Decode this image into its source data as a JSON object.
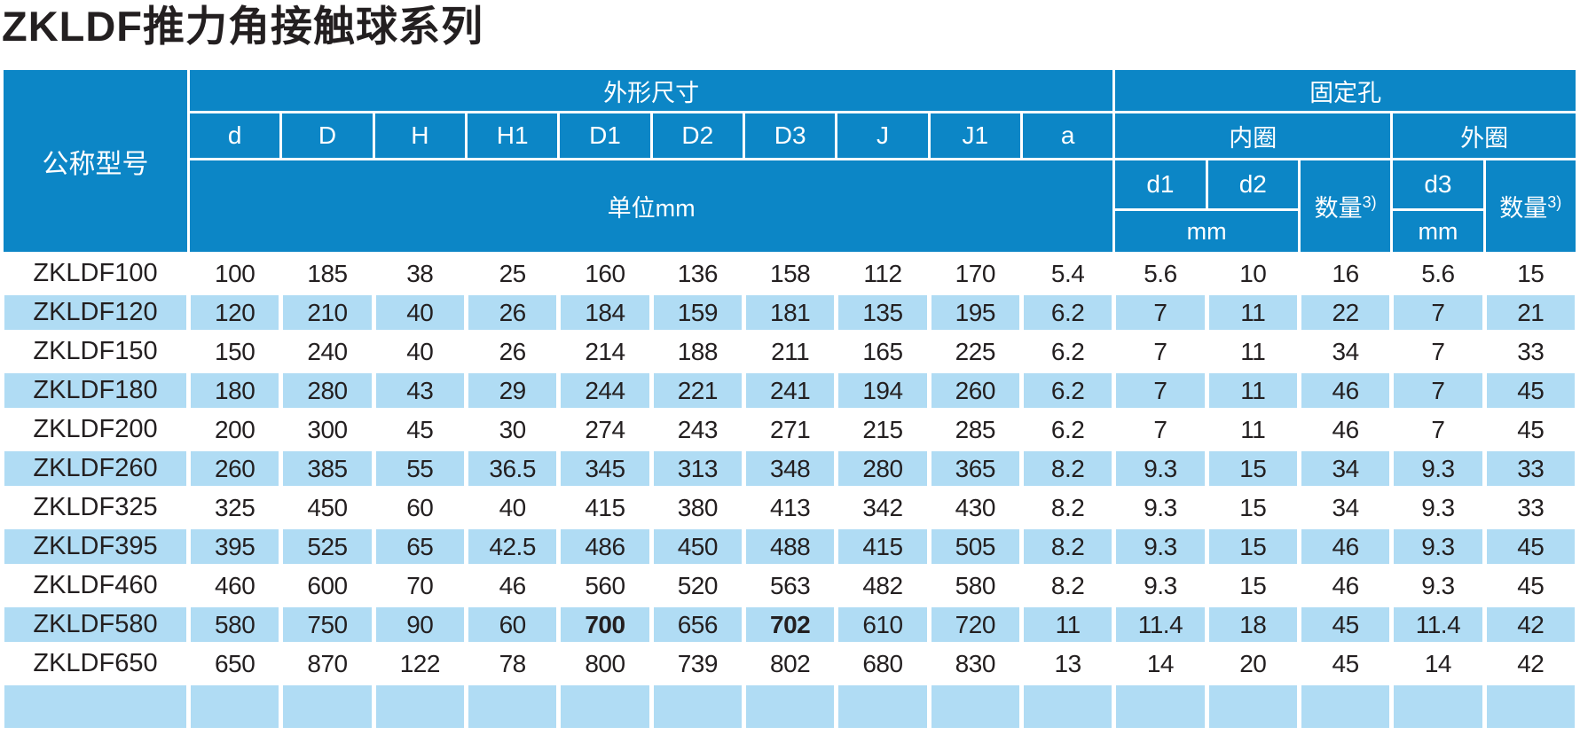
{
  "title": "ZKLDF推力角接触球系列",
  "colors": {
    "header_blue": "#0c86c6",
    "row_alt_blue": "#b0dcf4",
    "text_dark": "#231f20",
    "header_text": "#ffffff"
  },
  "table": {
    "header": {
      "model_label": "公称型号",
      "dims_label": "外形尺寸",
      "dims_columns": [
        "d",
        "D",
        "H",
        "H1",
        "D1",
        "D2",
        "D3",
        "J",
        "J1",
        "a"
      ],
      "dims_unit_label": "单位mm",
      "holes_label": "固定孔",
      "inner_ring_label": "内圈",
      "outer_ring_label": "外圈",
      "inner_d1_label": "d1",
      "inner_d2_label": "d2",
      "outer_d3_label": "d3",
      "qty_label": "数量",
      "qty_sup": "3)",
      "inner_mm_label": "mm",
      "outer_mm_label": "mm"
    },
    "rows": [
      {
        "model": "ZKLDF100",
        "values": [
          "100",
          "185",
          "38",
          "25",
          "160",
          "136",
          "158",
          "112",
          "170",
          "5.4",
          "5.6",
          "10",
          "16",
          "5.6",
          "15"
        ]
      },
      {
        "model": "ZKLDF120",
        "values": [
          "120",
          "210",
          "40",
          "26",
          "184",
          "159",
          "181",
          "135",
          "195",
          "6.2",
          "7",
          "11",
          "22",
          "7",
          "21"
        ]
      },
      {
        "model": "ZKLDF150",
        "values": [
          "150",
          "240",
          "40",
          "26",
          "214",
          "188",
          "211",
          "165",
          "225",
          "6.2",
          "7",
          "11",
          "34",
          "7",
          "33"
        ]
      },
      {
        "model": "ZKLDF180",
        "values": [
          "180",
          "280",
          "43",
          "29",
          "244",
          "221",
          "241",
          "194",
          "260",
          "6.2",
          "7",
          "11",
          "46",
          "7",
          "45"
        ]
      },
      {
        "model": "ZKLDF200",
        "values": [
          "200",
          "300",
          "45",
          "30",
          "274",
          "243",
          "271",
          "215",
          "285",
          "6.2",
          "7",
          "11",
          "46",
          "7",
          "45"
        ]
      },
      {
        "model": "ZKLDF260",
        "values": [
          "260",
          "385",
          "55",
          "36.5",
          "345",
          "313",
          "348",
          "280",
          "365",
          "8.2",
          "9.3",
          "15",
          "34",
          "9.3",
          "33"
        ]
      },
      {
        "model": "ZKLDF325",
        "values": [
          "325",
          "450",
          "60",
          "40",
          "415",
          "380",
          "413",
          "342",
          "430",
          "8.2",
          "9.3",
          "15",
          "34",
          "9.3",
          "33"
        ]
      },
      {
        "model": "ZKLDF395",
        "values": [
          "395",
          "525",
          "65",
          "42.5",
          "486",
          "450",
          "488",
          "415",
          "505",
          "8.2",
          "9.3",
          "15",
          "46",
          "9.3",
          "45"
        ]
      },
      {
        "model": "ZKLDF460",
        "values": [
          "460",
          "600",
          "70",
          "46",
          "560",
          "520",
          "563",
          "482",
          "580",
          "8.2",
          "9.3",
          "15",
          "46",
          "9.3",
          "45"
        ]
      },
      {
        "model": "ZKLDF580",
        "values": [
          "580",
          "750",
          "90",
          "60",
          "700",
          "656",
          "702",
          "610",
          "720",
          "11",
          "11.4",
          "18",
          "45",
          "11.4",
          "42"
        ],
        "bold": [
          4,
          6
        ]
      },
      {
        "model": "ZKLDF650",
        "values": [
          "650",
          "870",
          "122",
          "78",
          "800",
          "739",
          "802",
          "680",
          "830",
          "13",
          "14",
          "20",
          "45",
          "14",
          "42"
        ]
      }
    ]
  }
}
